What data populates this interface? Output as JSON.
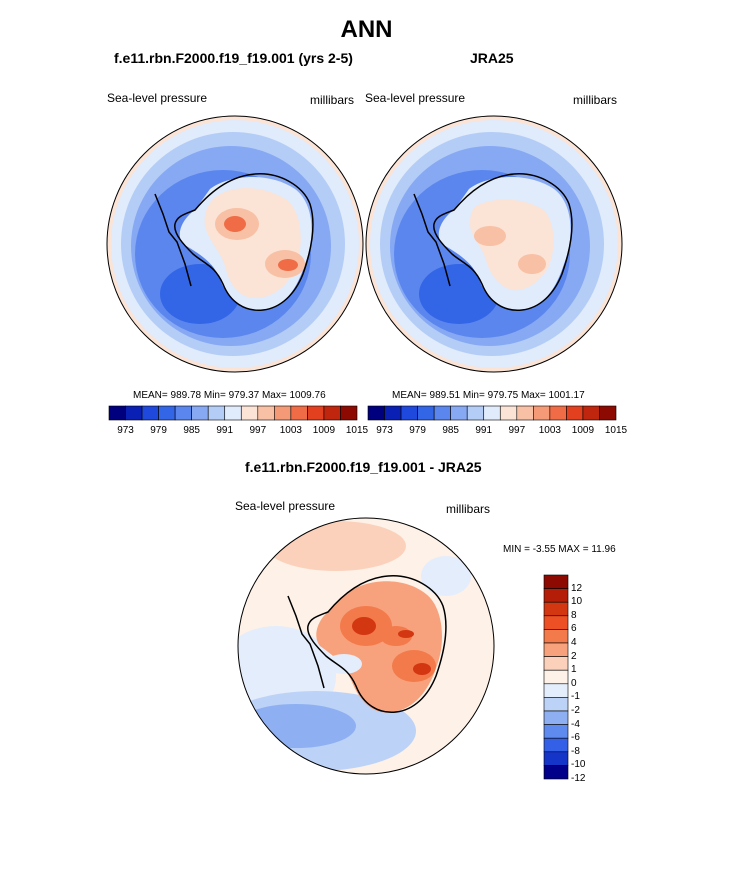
{
  "title": "ANN",
  "panels": [
    {
      "heading": "f.e11.rbn.F2000.f19_f19.001 (yrs 2-5)",
      "variable": "Sea-level pressure",
      "units": "millibars",
      "stats": "MEAN= 989.78  Min= 979.37  Max= 1009.76",
      "colorbar_labels": [
        "973",
        "979",
        "985",
        "991",
        "997",
        "1003",
        "1009",
        "1015"
      ]
    },
    {
      "heading": "JRA25",
      "variable": "Sea-level pressure",
      "units": "millibars",
      "stats": "MEAN= 989.51  Min= 979.75  Max= 1001.17",
      "colorbar_labels": [
        "973",
        "979",
        "985",
        "991",
        "997",
        "1003",
        "1009",
        "1015"
      ]
    }
  ],
  "difference": {
    "heading": "f.e11.rbn.F2000.f19_f19.001 - JRA25",
    "variable": "Sea-level pressure",
    "units": "millibars",
    "stats": "MIN =  -3.55 MAX =  11.96",
    "colorbar_labels": [
      "12",
      "10",
      "8",
      "6",
      "4",
      "2",
      "1",
      "0",
      "-1",
      "-2",
      "-4",
      "-6",
      "-8",
      "-10",
      "-12"
    ]
  },
  "colors": {
    "abs_scale": [
      "#00007f",
      "#0a1fb4",
      "#1f48dc",
      "#3366e6",
      "#5b86ee",
      "#87a9f3",
      "#b4cdf7",
      "#e0ebfb",
      "#fbe3d6",
      "#f8c0a4",
      "#f49a76",
      "#ef6c47",
      "#e3401f",
      "#c0250e",
      "#8c0a02"
    ],
    "diff_scale": [
      "#8c0a02",
      "#b41e08",
      "#d23712",
      "#ec5024",
      "#f37a4b",
      "#f7a27c",
      "#fbd1bb",
      "#fdf1e8",
      "#e4edfb",
      "#bcd2f7",
      "#8eb0f2",
      "#5f8aee",
      "#3460e8",
      "#1534c8",
      "#00008a"
    ]
  }
}
